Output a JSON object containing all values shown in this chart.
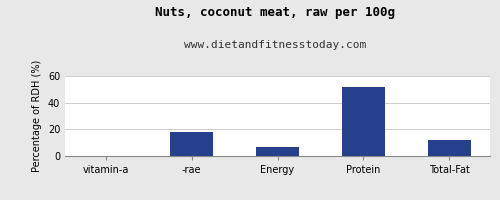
{
  "title": "Nuts, coconut meat, raw per 100g",
  "subtitle": "www.dietandfitnesstoday.com",
  "categories": [
    "vitamin-a",
    "-rae",
    "Energy",
    "Protein",
    "Total-Fat"
  ],
  "values": [
    0,
    18,
    7,
    52,
    12
  ],
  "bar_color": "#27408B",
  "ylabel": "Percentage of RDH (%)",
  "ylim": [
    0,
    60
  ],
  "yticks": [
    0,
    20,
    40,
    60
  ],
  "background_color": "#e8e8e8",
  "plot_bg_color": "#ffffff",
  "title_fontsize": 9,
  "subtitle_fontsize": 8,
  "tick_fontsize": 7,
  "ylabel_fontsize": 7
}
